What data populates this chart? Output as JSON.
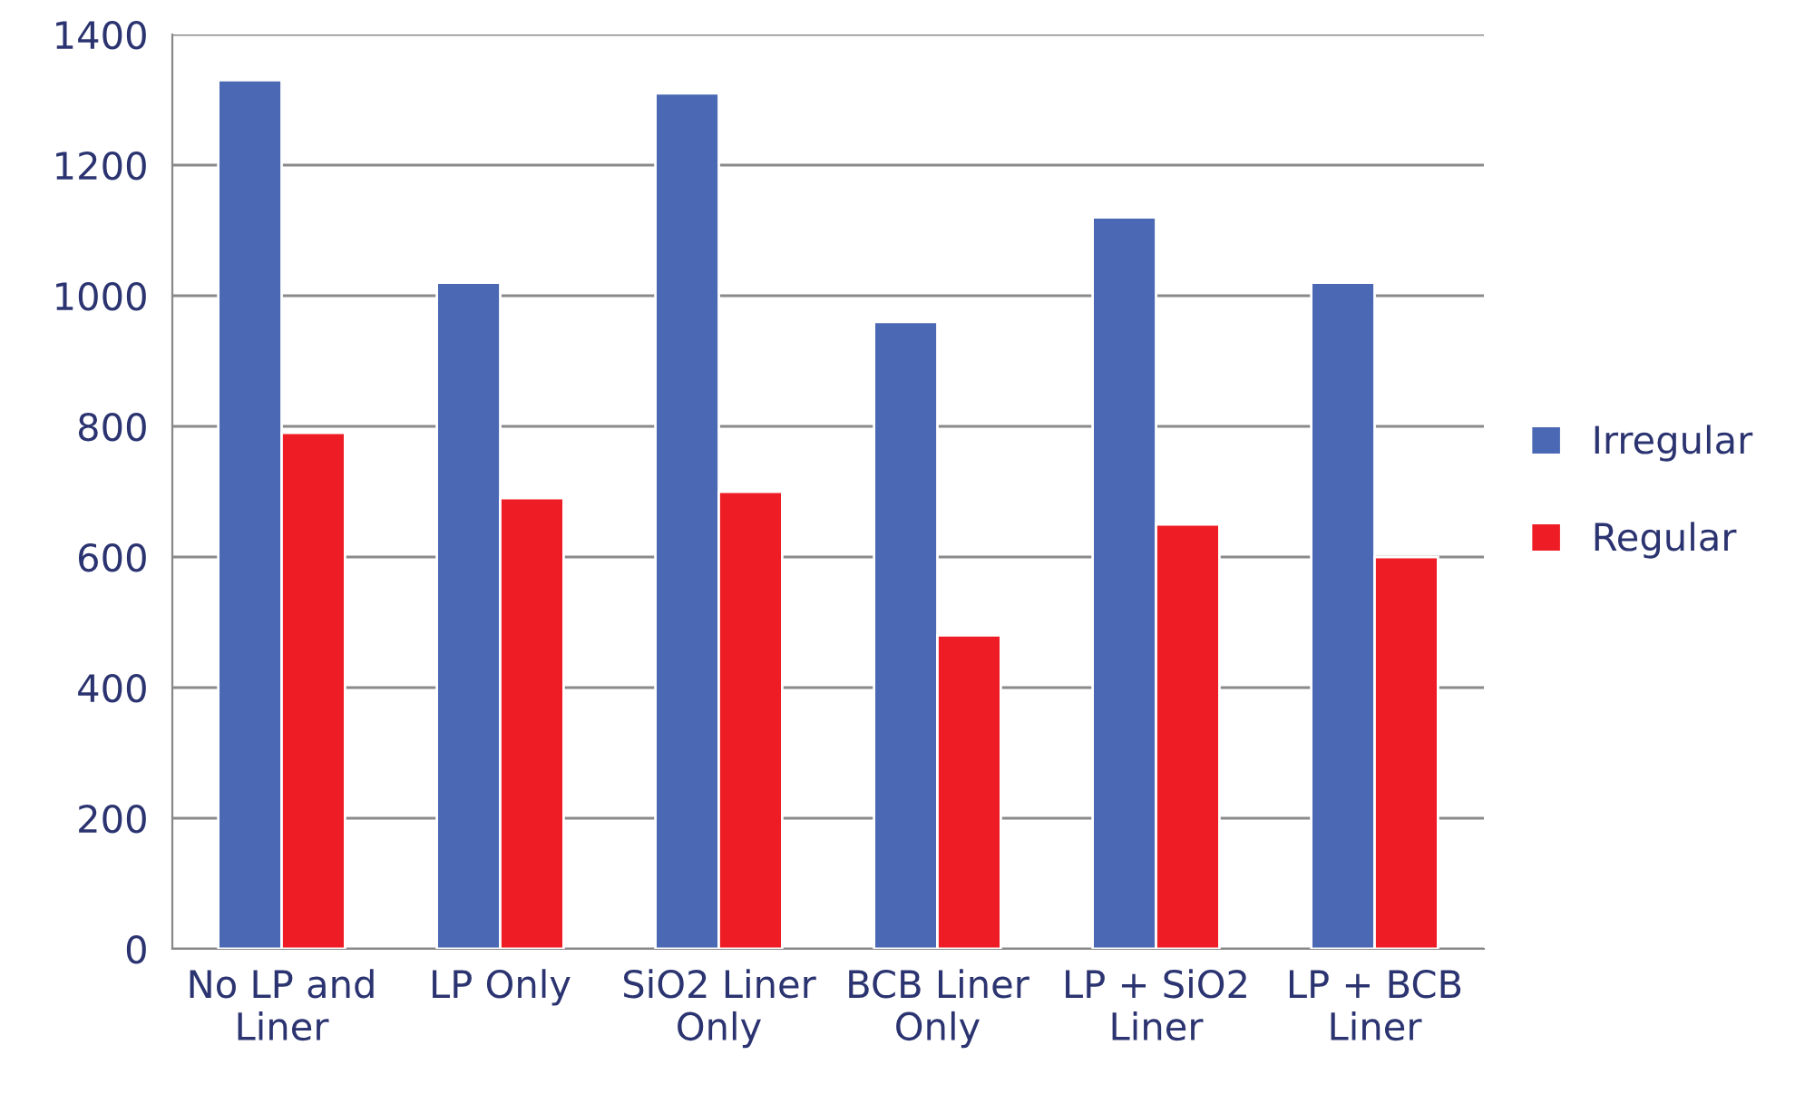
{
  "chart_data": {
    "type": "bar",
    "categories": [
      "No LP and\nLiner",
      "LP Only",
      "SiO2 Liner\nOnly",
      "BCB Liner\nOnly",
      "LP + SiO2\nLiner",
      "LP + BCB\nLiner"
    ],
    "series": [
      {
        "name": "Irregular",
        "color": "#4a68b3",
        "values": [
          1330,
          1020,
          1310,
          960,
          1120,
          1020
        ]
      },
      {
        "name": "Regular",
        "color": "#ee1c24",
        "values": [
          790,
          690,
          700,
          480,
          650,
          600
        ]
      }
    ],
    "ylim": [
      0,
      1400
    ],
    "yticks": [
      0,
      200,
      400,
      600,
      800,
      1000,
      1200,
      1400
    ],
    "grid": "y",
    "legend": "right"
  }
}
